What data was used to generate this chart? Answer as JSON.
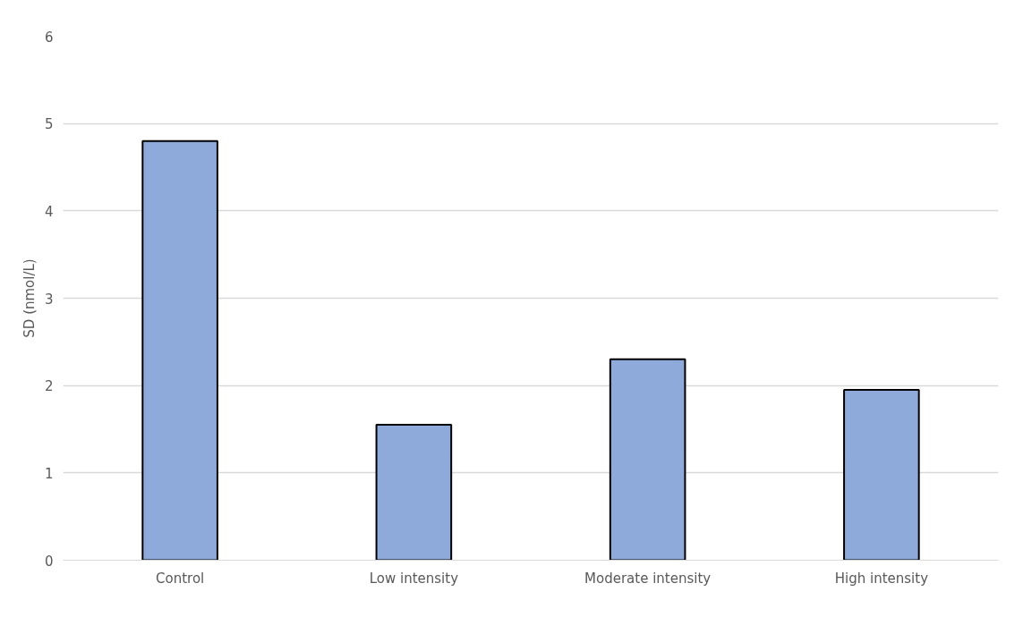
{
  "chart_data": {
    "type": "bar",
    "ylabel": "SD (nmol/L)",
    "categories": [
      "Control",
      "Low intensity",
      "Moderate intensity",
      "High intensity"
    ],
    "values": [
      4.8,
      1.55,
      2.3,
      1.95
    ],
    "color": "#8eaadb",
    "ylim": [
      0,
      6
    ],
    "yticks": [
      0,
      1,
      2,
      3,
      4,
      5,
      6
    ],
    "grid": "y"
  }
}
